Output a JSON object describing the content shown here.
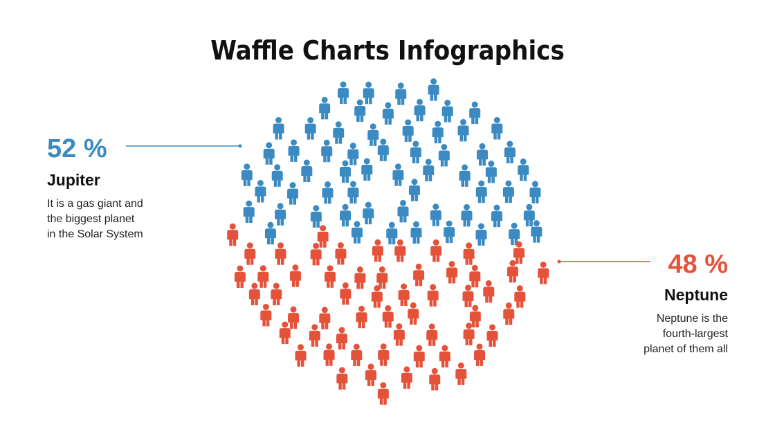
{
  "chart_data": {
    "type": "waffle",
    "title": "Waffle Charts Infographics",
    "series": [
      {
        "name": "Jupiter",
        "color": "#3b8bc2",
        "values": [
          52
        ],
        "value_labels": [
          "52 %"
        ],
        "description": [
          "It is a gas giant and",
          "the biggest planet",
          "in the Solar System"
        ]
      },
      {
        "name": "Neptune",
        "color": "#e4523a",
        "values": [
          48
        ],
        "value_labels": [
          "48 %"
        ],
        "description": [
          "Neptune is the",
          "fourth-largest",
          "planet of them all"
        ]
      }
    ]
  }
}
